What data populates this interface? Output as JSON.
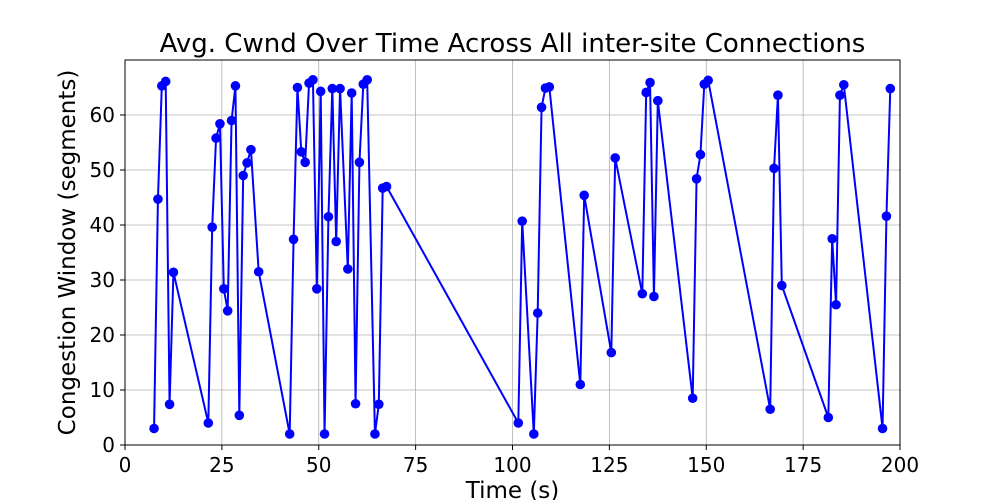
{
  "chart_data": {
    "type": "line",
    "title": "Avg. Cwnd Over Time Across All inter-site Connections",
    "xlabel": "Time (s)",
    "ylabel": "Congestion Window (segments)",
    "xlim": [
      0,
      200
    ],
    "ylim": [
      0,
      70
    ],
    "xticks": [
      0,
      25,
      50,
      75,
      100,
      125,
      150,
      175,
      200
    ],
    "yticks": [
      0,
      10,
      20,
      30,
      40,
      50,
      60
    ],
    "grid": true,
    "legend": "none",
    "series": [
      {
        "color": "#0000ff",
        "marker": "circle",
        "x": [
          7.5,
          8.5,
          9.5,
          10.5,
          11.5,
          12.5,
          21.5,
          22.5,
          23.5,
          24.5,
          25.5,
          26.5,
          27.5,
          28.5,
          29.5,
          30.5,
          31.5,
          32.5,
          34.5,
          42.5,
          43.5,
          44.5,
          45.5,
          46.5,
          47.5,
          48.5,
          49.5,
          50.5,
          51.5,
          52.5,
          53.5,
          54.5,
          55.5,
          57.5,
          58.5,
          59.5,
          60.5,
          61.5,
          62.5,
          64.5,
          65.5,
          66.5,
          67.5,
          101.5,
          102.5,
          105.5,
          106.5,
          107.5,
          108.5,
          109.5,
          117.5,
          118.5,
          125.5,
          126.5,
          133.5,
          134.5,
          135.5,
          136.5,
          137.5,
          146.5,
          147.5,
          148.5,
          149.5,
          150.5,
          166.5,
          167.5,
          168.5,
          169.5,
          181.5,
          182.5,
          183.5,
          184.5,
          185.5,
          195.5,
          196.5,
          197.5
        ],
        "y": [
          3.0,
          44.7,
          65.3,
          66.1,
          7.4,
          31.4,
          4.0,
          39.6,
          55.8,
          58.4,
          28.4,
          24.4,
          59.0,
          65.3,
          5.4,
          49.0,
          51.3,
          53.7,
          31.5,
          2.0,
          37.4,
          65.0,
          53.3,
          51.4,
          65.8,
          66.4,
          28.4,
          64.3,
          2.0,
          41.5,
          64.8,
          37.0,
          64.8,
          32.0,
          64.0,
          7.5,
          51.4,
          65.6,
          66.4,
          2.0,
          7.4,
          46.7,
          47.0,
          4.0,
          40.7,
          2.0,
          24.0,
          61.4,
          64.9,
          65.1,
          11.0,
          45.4,
          16.8,
          52.2,
          27.5,
          64.1,
          65.9,
          27.0,
          62.6,
          8.5,
          48.4,
          52.8,
          65.6,
          66.3,
          6.5,
          50.3,
          63.6,
          29.0,
          5.0,
          37.5,
          25.5,
          63.6,
          65.5,
          3.0,
          41.6,
          64.8
        ]
      }
    ]
  }
}
